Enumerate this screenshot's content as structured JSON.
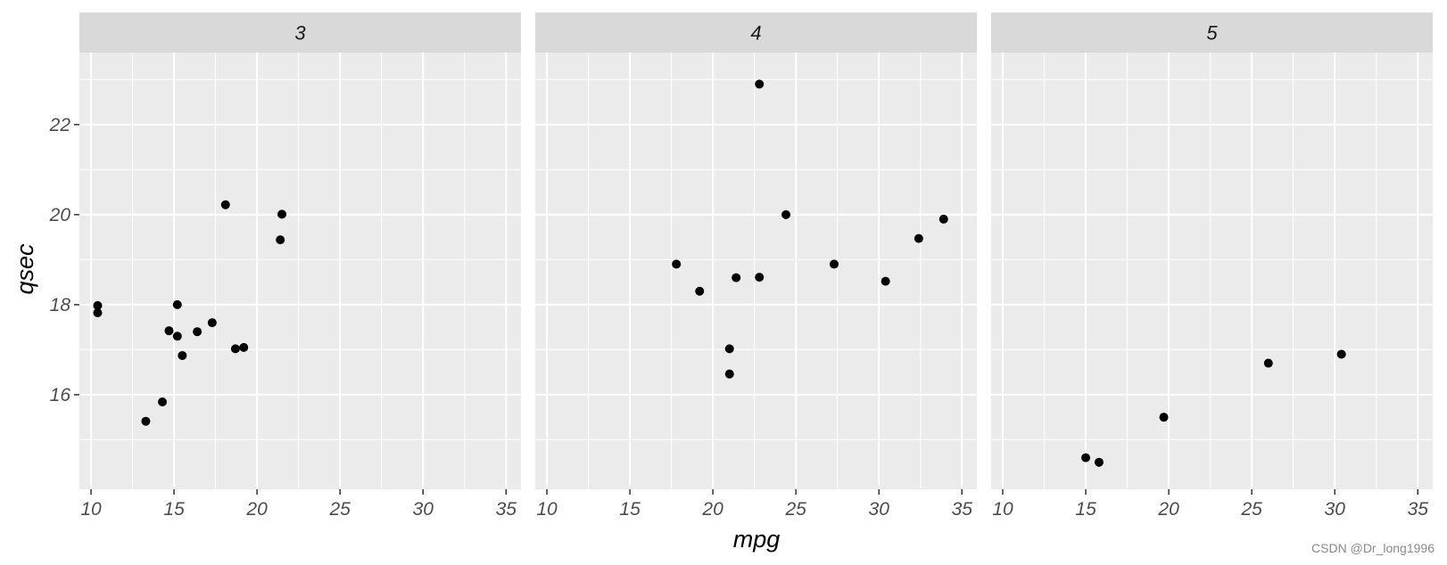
{
  "chart_data": {
    "type": "scatter",
    "xlabel": "mpg",
    "ylabel": "qsec",
    "xlim": [
      9.3,
      35.9
    ],
    "ylim": [
      13.9,
      23.6
    ],
    "x_ticks": [
      10,
      15,
      20,
      25,
      30,
      35
    ],
    "y_ticks": [
      16,
      18,
      20,
      22
    ],
    "grid": true,
    "point_color": "#000000",
    "panel_background": "#ebebeb",
    "strip_background": "#d9d9d9",
    "panels": [
      {
        "label": "3",
        "points": [
          {
            "x": 10.4,
            "y": 17.98
          },
          {
            "x": 10.4,
            "y": 17.82
          },
          {
            "x": 13.3,
            "y": 15.41
          },
          {
            "x": 14.3,
            "y": 15.84
          },
          {
            "x": 14.7,
            "y": 17.42
          },
          {
            "x": 15.2,
            "y": 18.0
          },
          {
            "x": 15.2,
            "y": 17.3
          },
          {
            "x": 15.5,
            "y": 16.87
          },
          {
            "x": 16.4,
            "y": 17.4
          },
          {
            "x": 17.3,
            "y": 17.6
          },
          {
            "x": 18.1,
            "y": 20.22
          },
          {
            "x": 18.7,
            "y": 17.02
          },
          {
            "x": 19.2,
            "y": 17.05
          },
          {
            "x": 21.4,
            "y": 19.44
          },
          {
            "x": 21.5,
            "y": 20.01
          }
        ]
      },
      {
        "label": "4",
        "points": [
          {
            "x": 17.8,
            "y": 18.9
          },
          {
            "x": 19.2,
            "y": 18.3
          },
          {
            "x": 21.0,
            "y": 16.46
          },
          {
            "x": 21.0,
            "y": 17.02
          },
          {
            "x": 21.4,
            "y": 18.6
          },
          {
            "x": 22.8,
            "y": 18.61
          },
          {
            "x": 22.8,
            "y": 22.9
          },
          {
            "x": 24.4,
            "y": 20.0
          },
          {
            "x": 27.3,
            "y": 18.9
          },
          {
            "x": 30.4,
            "y": 18.52
          },
          {
            "x": 32.4,
            "y": 19.47
          },
          {
            "x": 33.9,
            "y": 19.9
          }
        ]
      },
      {
        "label": "5",
        "points": [
          {
            "x": 15.0,
            "y": 14.6
          },
          {
            "x": 15.8,
            "y": 14.5
          },
          {
            "x": 19.7,
            "y": 15.5
          },
          {
            "x": 26.0,
            "y": 16.7
          },
          {
            "x": 30.4,
            "y": 16.9
          }
        ]
      }
    ]
  },
  "watermark": "CSDN @Dr_long1996"
}
